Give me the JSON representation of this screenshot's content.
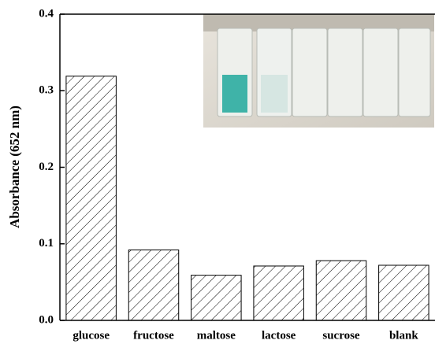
{
  "chart_data": {
    "type": "bar",
    "ylabel": "Absorbance (652 nm)",
    "categories": [
      "glucose",
      "fructose",
      "maltose",
      "lactose",
      "sucrose",
      "blank"
    ],
    "values": [
      0.319,
      0.092,
      0.059,
      0.071,
      0.078,
      0.072
    ],
    "color": "#000000",
    "ylim": [
      0,
      0.4
    ],
    "yticks": [
      {
        "value": 0,
        "label": "0.0"
      },
      0.1,
      0.2,
      0.3,
      0.4
    ]
  }
}
